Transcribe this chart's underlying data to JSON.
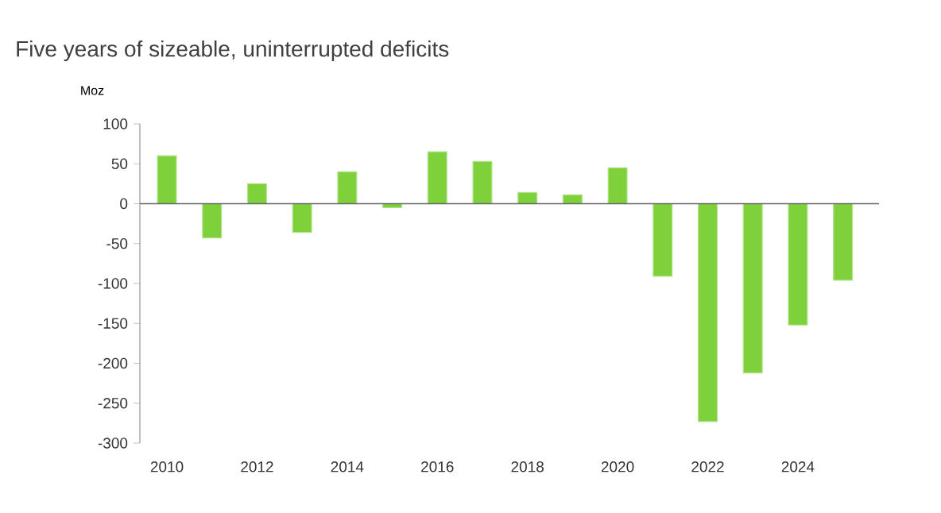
{
  "chart_data": {
    "type": "bar",
    "title": "Five years of sizeable, uninterrupted deficits",
    "ylabel": "Moz",
    "x": [
      2010,
      2011,
      2012,
      2013,
      2014,
      2015,
      2016,
      2017,
      2018,
      2019,
      2020,
      2021,
      2022,
      2023,
      2024,
      2025
    ],
    "values": [
      60,
      -43,
      25,
      -36,
      40,
      -5,
      65,
      53,
      14,
      11,
      45,
      -91,
      -273,
      -212,
      -152,
      -96
    ],
    "color": "#7fd13b",
    "xlim": [
      2009.4,
      2025.8
    ],
    "xticks": [
      2010,
      2012,
      2014,
      2016,
      2018,
      2020,
      2022,
      2024
    ],
    "ylim": [
      -300,
      100
    ],
    "yticks": [
      -300,
      -250,
      -200,
      -150,
      -100,
      -50,
      0,
      50,
      100
    ]
  }
}
